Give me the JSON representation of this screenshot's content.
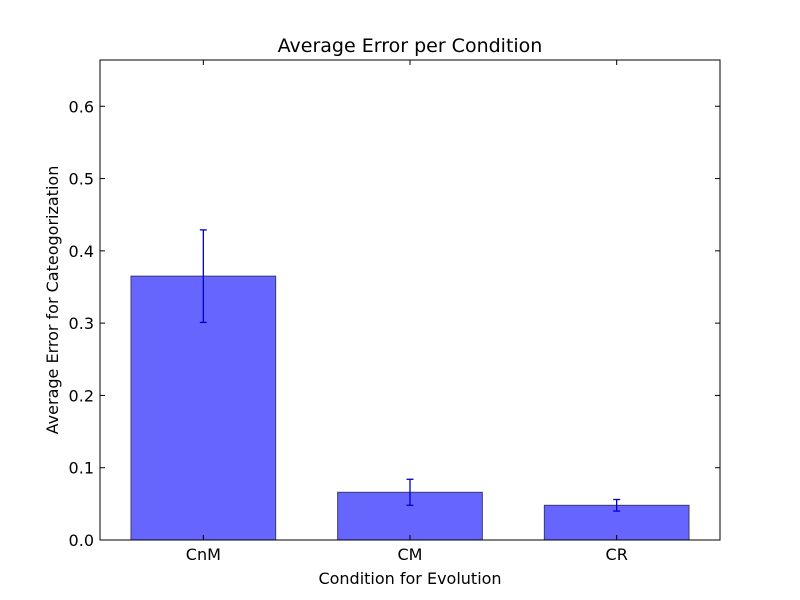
{
  "chart_data": {
    "type": "bar",
    "title": "Average Error per Condition",
    "xlabel": "Condition for Evolution",
    "ylabel": "Average Error for Cateogorization",
    "categories": [
      "CnM",
      "CM",
      "CR"
    ],
    "values": [
      0.365,
      0.066,
      0.048
    ],
    "error": [
      0.064,
      0.018,
      0.008
    ],
    "ylim": [
      0,
      0.664
    ],
    "yticks": [
      0.0,
      0.1,
      0.2,
      0.3,
      0.4,
      0.5,
      0.6
    ],
    "ytick_labels": [
      "0.0",
      "0.1",
      "0.2",
      "0.3",
      "0.4",
      "0.5",
      "0.6"
    ],
    "grid": false,
    "colors": {
      "bar_fill": "#6666ff",
      "bar_edge": "#3a3a6e",
      "error_bar": "#0000cc",
      "axes": "#000000"
    }
  }
}
